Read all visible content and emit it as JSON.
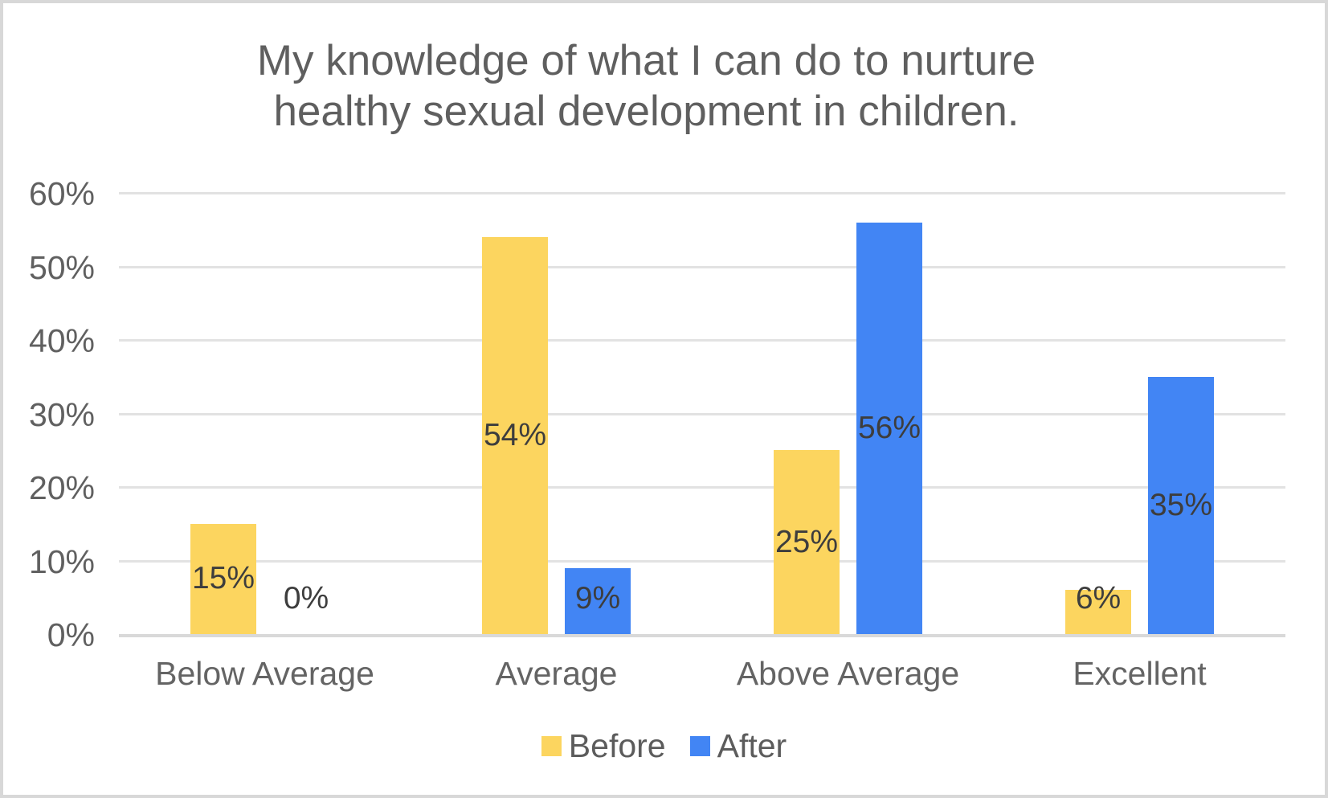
{
  "chart": {
    "title_lines": [
      "My knowledge of what I can do to nurture",
      "healthy sexual development in children."
    ]
  },
  "chart_data": {
    "type": "bar",
    "title": "My knowledge of what I can do to nurture healthy sexual development in children.",
    "categories": [
      "Below Average",
      "Average",
      "Above Average",
      "Excellent"
    ],
    "series": [
      {
        "name": "Before",
        "color": "#FCD55F",
        "values": [
          15,
          54,
          25,
          6
        ],
        "labels": [
          "15%",
          "54%",
          "25%",
          "6%"
        ]
      },
      {
        "name": "After",
        "color": "#4285F4",
        "values": [
          0,
          9,
          56,
          35
        ],
        "labels": [
          "0%",
          "9%",
          "56%",
          "35%"
        ]
      }
    ],
    "xlabel": "",
    "ylabel": "",
    "y_axis": {
      "min": 0,
      "max": 60,
      "tick_step": 10,
      "ticks": [
        "0%",
        "10%",
        "20%",
        "30%",
        "40%",
        "50%",
        "60%"
      ],
      "grid": true
    },
    "legend": {
      "position": "bottom",
      "entries": [
        "Before",
        "After"
      ]
    }
  },
  "colors": {
    "grid": "#e2e2e2",
    "baseline": "#d9d9d9",
    "frame_border": "#d8d8d8",
    "title_text": "#5f5f5f",
    "axis_text": "#606060",
    "data_label_text": "#3d3d3d",
    "legend_text": "#5c5c5c",
    "series_before": "#FCD55F",
    "series_after": "#4285F4"
  }
}
